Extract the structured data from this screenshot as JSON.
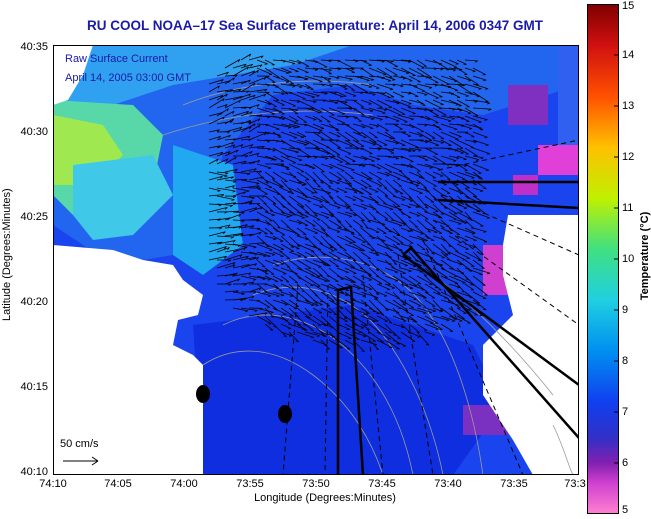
{
  "title": "RU COOL  NOAA–17  Sea Surface Temperature:  April 14, 2006 0347 GMT",
  "legend": {
    "line1": "Raw Surface Current",
    "line2": "April 14, 2005 03:00 GMT"
  },
  "axes": {
    "ylabel": "Latitude (Degrees:Minutes)",
    "xlabel": "Longitude (Degrees:Minutes)",
    "yticks": [
      "40:35",
      "40:30",
      "40:25",
      "40:20",
      "40:15",
      "40:10"
    ],
    "xticks": [
      "74:10",
      "74:05",
      "74:00",
      "73:55",
      "73:50",
      "73:45",
      "73:40",
      "73:35",
      "73:3"
    ]
  },
  "scale": {
    "label": "50 cm/s"
  },
  "colorbar": {
    "label": "Temperature (°C)",
    "ticks": [
      "15",
      "14",
      "13",
      "12",
      "11",
      "10",
      "9",
      "8",
      "7",
      "6",
      "5"
    ],
    "range": [
      5,
      15
    ],
    "colors": [
      "#ff80d0",
      "#d040d0",
      "#8020b0",
      "#3030c8",
      "#1040f0",
      "#0090f0",
      "#20d0e0",
      "#40e080",
      "#c0f000",
      "#ffc000",
      "#ff5000",
      "#d01010",
      "#800000"
    ]
  },
  "colors": {
    "water_main": "#1a44ee",
    "water_deep": "#0a1cc8",
    "warm_coastal": "#30c0ff",
    "cold_patch": "#e040d8",
    "land": "#ffffff",
    "vector": "#000000"
  }
}
